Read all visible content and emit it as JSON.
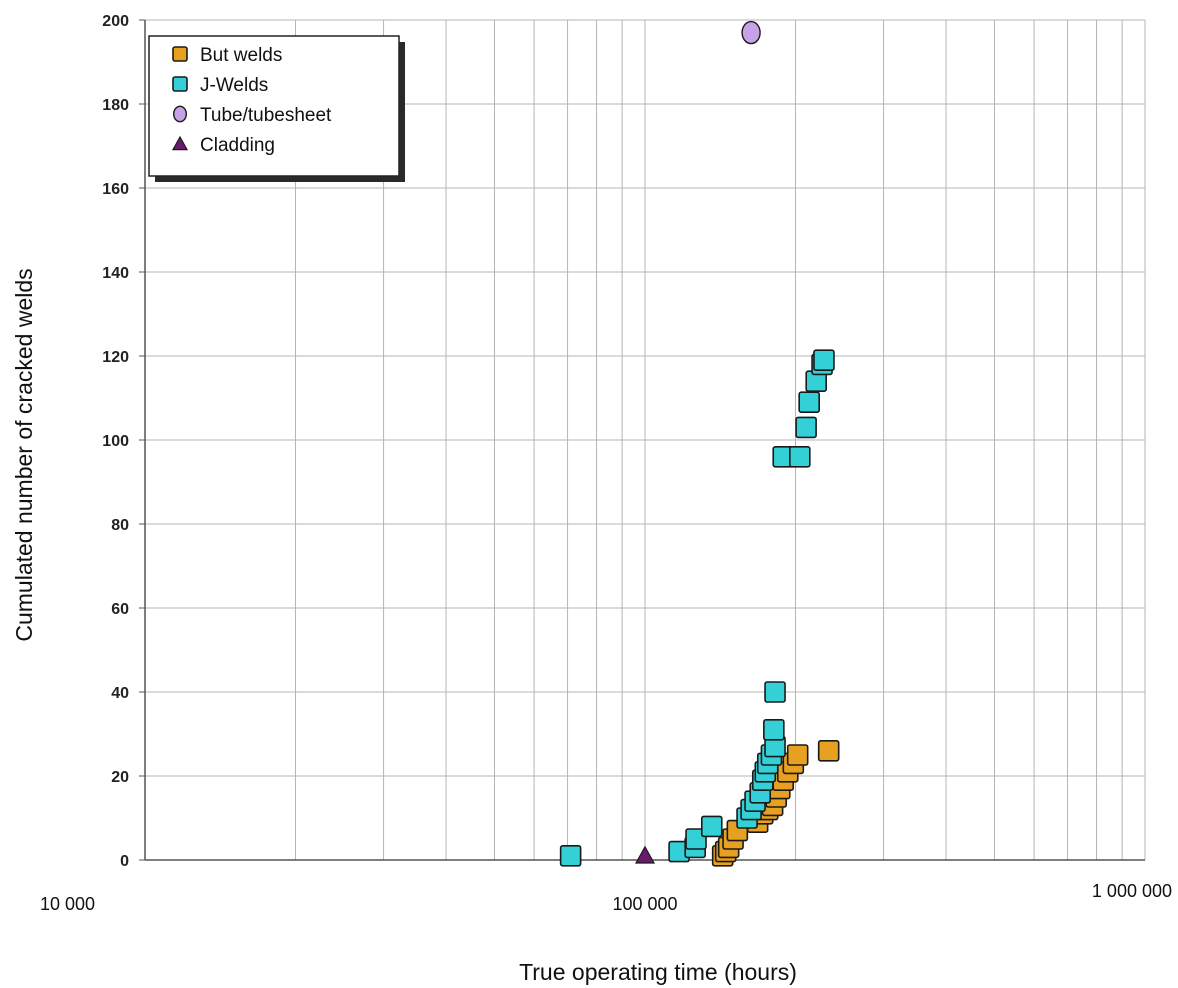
{
  "chart_data": {
    "type": "scatter",
    "title": "",
    "xlabel": "True operating time (hours)",
    "ylabel": "Cumulated number of cracked  welds",
    "xscale": "log",
    "xlim": [
      10000,
      1000000
    ],
    "ylim": [
      0,
      200
    ],
    "x_ticks": [
      {
        "value": 10000,
        "label": "10 000"
      },
      {
        "value": 100000,
        "label": "100 000"
      },
      {
        "value": 1000000,
        "label": "1 000 000"
      }
    ],
    "y_ticks": [
      0,
      20,
      40,
      60,
      80,
      100,
      120,
      140,
      160,
      180,
      200
    ],
    "grid": true,
    "legend_position": "top-left",
    "series": [
      {
        "name": "But welds",
        "marker": "square",
        "color": "#E8A020",
        "points": [
          [
            143000,
            1
          ],
          [
            145000,
            2
          ],
          [
            147000,
            3
          ],
          [
            150000,
            5
          ],
          [
            153000,
            7
          ],
          [
            168000,
            9
          ],
          [
            172000,
            11
          ],
          [
            176000,
            12
          ],
          [
            180000,
            13
          ],
          [
            183000,
            15
          ],
          [
            186000,
            17
          ],
          [
            189000,
            19
          ],
          [
            193000,
            21
          ],
          [
            198000,
            23
          ],
          [
            202000,
            25
          ],
          [
            233000,
            26
          ]
        ]
      },
      {
        "name": "J-Welds",
        "marker": "square",
        "color": "#33D0D8",
        "points": [
          [
            71000,
            1
          ],
          [
            117000,
            2
          ],
          [
            126000,
            3
          ],
          [
            126500,
            5
          ],
          [
            136000,
            8
          ],
          [
            160000,
            10
          ],
          [
            163000,
            12
          ],
          [
            166000,
            14
          ],
          [
            170000,
            16
          ],
          [
            172000,
            19
          ],
          [
            174000,
            21
          ],
          [
            176000,
            23
          ],
          [
            179000,
            25
          ],
          [
            182000,
            27
          ],
          [
            181000,
            31
          ],
          [
            182000,
            40
          ],
          [
            189000,
            96
          ],
          [
            204000,
            96
          ],
          [
            210000,
            103
          ],
          [
            213000,
            109
          ],
          [
            220000,
            114
          ],
          [
            226000,
            118
          ],
          [
            228000,
            119
          ]
        ]
      },
      {
        "name": "Tube/tubesheet",
        "marker": "circle",
        "color": "#C8A2E8",
        "points": [
          [
            163000,
            197
          ]
        ]
      },
      {
        "name": "Cladding",
        "marker": "triangle",
        "color": "#6A1A6A",
        "points": [
          [
            100000,
            1
          ]
        ]
      }
    ]
  }
}
